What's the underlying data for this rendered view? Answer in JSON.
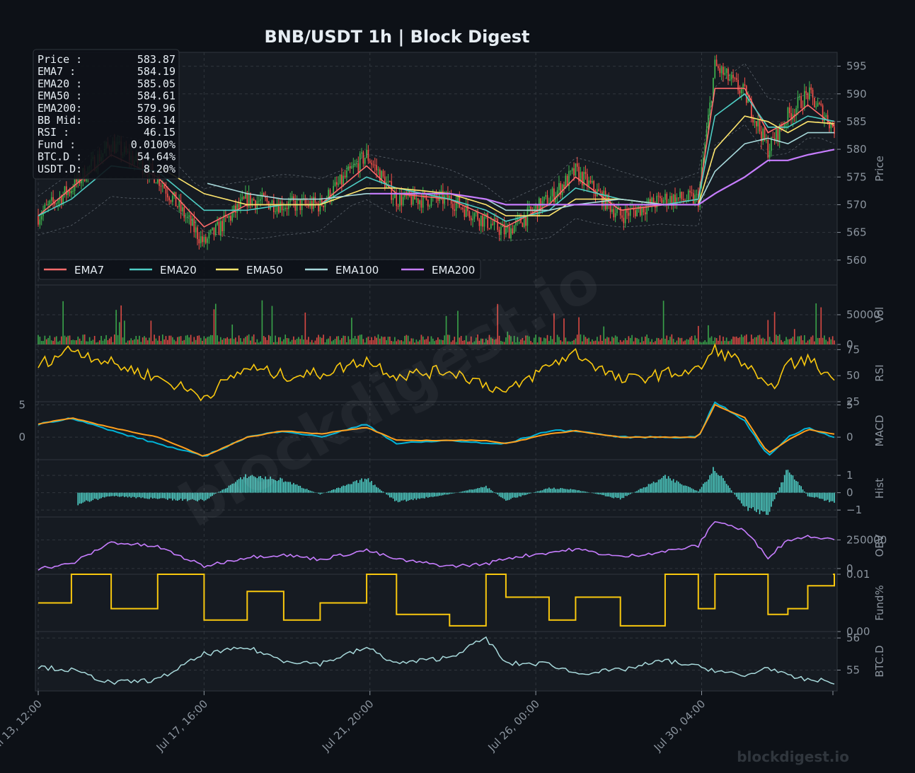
{
  "title": "BNB/USDT  1h  |  Block Digest",
  "watermark": "blockdigest.io",
  "footer_brand": "blockdigest.io",
  "colors": {
    "background": "#0d1117",
    "panel": "#161b22",
    "grid": "#30363d",
    "text": "#e6edf3",
    "muted": "#8b949e",
    "up": "#3fb950",
    "down": "#f85149",
    "ema7": "#ff6b6b",
    "ema20": "#4ecdc4",
    "ema50": "#ffe66d",
    "ema100": "#a8dadc",
    "ema200": "#c77dff",
    "rsi": "#f9c80e",
    "macd": "#00b4d8",
    "signal": "#ff9f1c",
    "hist": "#4ecdc4",
    "obv": "#c77dff",
    "fund": "#f9c80e",
    "btcd": "#a8dadc",
    "bb": "#8b949e"
  },
  "info_box": [
    {
      "label": "Price :",
      "value": "583.87"
    },
    {
      "label": "EMA7  :",
      "value": "584.19"
    },
    {
      "label": "EMA20 :",
      "value": "585.05"
    },
    {
      "label": "EMA50 :",
      "value": "584.61"
    },
    {
      "label": "EMA200:",
      "value": "579.96"
    },
    {
      "label": "BB Mid:",
      "value": "586.14"
    },
    {
      "label": "RSI   :",
      "value": "46.15"
    },
    {
      "label": "Fund  :",
      "value": "0.0100%"
    },
    {
      "label": "BTC.D :",
      "value": "54.64%"
    },
    {
      "label": "USDT.D:",
      "value": "8.20%"
    }
  ],
  "legend": [
    "EMA7",
    "EMA20",
    "EMA50",
    "EMA100",
    "EMA200"
  ],
  "x_axis": {
    "start": "2024-07-13T12:00",
    "end": "2024-08-02T12:00",
    "bar_interval_hours": 1,
    "tick_labels": [
      "Jul 13, 12:00",
      "Jul 17, 16:00",
      "Jul 21, 20:00",
      "Jul 26, 00:00",
      "Jul 30, 04:00"
    ]
  },
  "chart_data": [
    {
      "type": "line",
      "panel": "price",
      "ylabel": "Price",
      "ylim": [
        555.5,
        597.5
      ],
      "yticks": [
        560,
        565,
        570,
        575,
        580,
        585,
        590,
        595
      ],
      "grid": true,
      "legend_position": "lower-left",
      "candles": "hourly OHLC (up green / down red)",
      "key_points": {
        "x": [
          "2024-07-13T12:00",
          "2024-07-14T08:00",
          "2024-07-15T08:00",
          "2024-07-16T12:00",
          "2024-07-17T16:00",
          "2024-07-18T18:00",
          "2024-07-19T16:00",
          "2024-07-20T14:00",
          "2024-07-21T18:00",
          "2024-07-22T12:00",
          "2024-07-23T20:00",
          "2024-07-24T18:00",
          "2024-07-25T06:00",
          "2024-07-26T08:00",
          "2024-07-27T00:00",
          "2024-07-28T03:00",
          "2024-07-29T06:00",
          "2024-07-30T02:00",
          "2024-07-30T12:00",
          "2024-07-31T06:00",
          "2024-07-31T20:00",
          "2024-08-01T08:00",
          "2024-08-01T20:00",
          "2024-08-02T12:00"
        ],
        "close": [
          568,
          573,
          581,
          575,
          563,
          571,
          570,
          570,
          579,
          571,
          571,
          567,
          565,
          571,
          576,
          568,
          571,
          571,
          595,
          590,
          580,
          586,
          590,
          583.87
        ]
      },
      "series": [
        {
          "name": "EMA7",
          "values": [
            568,
            573,
            579,
            575,
            566,
            570,
            570,
            570,
            577,
            572,
            571,
            568,
            566,
            570,
            575,
            569,
            570,
            571,
            591,
            591,
            583,
            585,
            588,
            584.19
          ]
        },
        {
          "name": "EMA20",
          "values": [
            568,
            571,
            577,
            576,
            569,
            569,
            570,
            570,
            575,
            573,
            571,
            569,
            567,
            569,
            573,
            571,
            570,
            571,
            586,
            590,
            584,
            584,
            586,
            585.05
          ]
        },
        {
          "name": "EMA50",
          "values": [
            null,
            null,
            null,
            577,
            572,
            570,
            570,
            570,
            573,
            573,
            572,
            570,
            568,
            568,
            571,
            571,
            570,
            570,
            580,
            586,
            585,
            583,
            585,
            584.61
          ]
        },
        {
          "name": "EMA100",
          "values": [
            null,
            null,
            null,
            null,
            574,
            572,
            571,
            571,
            572,
            572,
            572,
            571,
            569,
            569,
            570,
            571,
            570,
            570,
            576,
            581,
            582,
            581,
            583,
            583.0
          ]
        },
        {
          "name": "EMA200",
          "values": [
            null,
            null,
            null,
            null,
            null,
            null,
            null,
            null,
            572,
            572,
            572,
            571,
            570,
            570,
            570,
            570,
            570,
            570,
            572,
            575,
            578,
            578,
            579,
            579.96
          ]
        }
      ],
      "bb_mid": 586.14
    },
    {
      "type": "bar",
      "panel": "volume",
      "ylabel": "Vol",
      "ylim": [
        0,
        100000
      ],
      "yticks": [
        0,
        50000
      ],
      "colors": "green up / red down"
    },
    {
      "type": "line",
      "panel": "rsi",
      "ylabel": "RSI",
      "ylim": [
        25,
        80
      ],
      "yticks": [
        25,
        50,
        75
      ],
      "series": [
        {
          "name": "RSI",
          "values": [
            60,
            76,
            62,
            48,
            30,
            58,
            50,
            52,
            65,
            50,
            55,
            42,
            33,
            60,
            72,
            45,
            52,
            55,
            75,
            62,
            35,
            60,
            66,
            46.15
          ]
        }
      ]
    },
    {
      "type": "line",
      "panel": "macd",
      "ylabel": "MACD",
      "ylim": [
        -3.5,
        5.5
      ],
      "yticks": [
        0,
        5
      ],
      "series": [
        {
          "name": "MACD",
          "values": [
            2,
            3,
            1,
            -1,
            -3,
            0,
            1,
            0,
            2,
            -1,
            -0.5,
            -1,
            -1,
            1,
            1,
            0,
            0,
            0,
            5.5,
            2.5,
            -3,
            0,
            1.5,
            0
          ]
        },
        {
          "name": "Signal",
          "values": [
            2,
            3,
            1.5,
            0,
            -3,
            0,
            1,
            0.5,
            1.5,
            -0.5,
            -0.5,
            -0.5,
            -1,
            0.5,
            1,
            0,
            0,
            0,
            5,
            3,
            -2.5,
            -0.5,
            1.2,
            0.5
          ]
        }
      ]
    },
    {
      "type": "bar",
      "panel": "hist",
      "ylabel": "Hist",
      "ylim": [
        -1.4,
        1.9
      ],
      "yticks": [
        -1,
        0,
        1
      ],
      "values": [
        0,
        -0.8,
        -0.2,
        -0.4,
        -0.5,
        1.1,
        0.8,
        -0.1,
        0.9,
        -0.6,
        -0.1,
        0.4,
        -0.5,
        0.3,
        0.2,
        -0.4,
        1.0,
        0.1,
        1.6,
        -1.0,
        -1.3,
        1.5,
        -0.2,
        -0.6
      ]
    },
    {
      "type": "line",
      "panel": "obv",
      "ylabel": "OBV",
      "ylim": [
        -50000,
        450000
      ],
      "yticks": [
        0,
        250000
      ],
      "series": [
        {
          "name": "OBV",
          "values": [
            0,
            40000,
            230000,
            190000,
            20000,
            100000,
            120000,
            80000,
            160000,
            80000,
            20000,
            40000,
            90000,
            140000,
            170000,
            100000,
            150000,
            200000,
            420000,
            330000,
            100000,
            250000,
            280000,
            265000
          ]
        }
      ]
    },
    {
      "type": "line",
      "panel": "fund",
      "ylabel": "Fund%",
      "ylim": [
        0,
        0.01
      ],
      "yticks": [
        0.0,
        0.01
      ],
      "series": [
        {
          "name": "Funding",
          "values": [
            0.005,
            0.01,
            0.004,
            0.01,
            0.002,
            0.007,
            0.002,
            0.005,
            0.01,
            0.003,
            0.001,
            0.01,
            0.006,
            0.002,
            0.006,
            0.001,
            0.01,
            0.004,
            0.01,
            0.01,
            0.003,
            0.004,
            0.008,
            0.01
          ]
        }
      ]
    },
    {
      "type": "line",
      "panel": "btcd",
      "ylabel": "BTC.D",
      "ylim": [
        54.35,
        56.2
      ],
      "yticks": [
        55,
        56
      ],
      "series": [
        {
          "name": "BTC.D",
          "values": [
            55.1,
            55.0,
            54.6,
            54.7,
            55.5,
            55.7,
            55.3,
            55.2,
            55.7,
            55.2,
            55.4,
            56.0,
            55.2,
            55.2,
            54.9,
            55.0,
            55.3,
            55.1,
            55.0,
            54.8,
            55.1,
            54.8,
            54.7,
            54.64
          ]
        }
      ]
    }
  ]
}
